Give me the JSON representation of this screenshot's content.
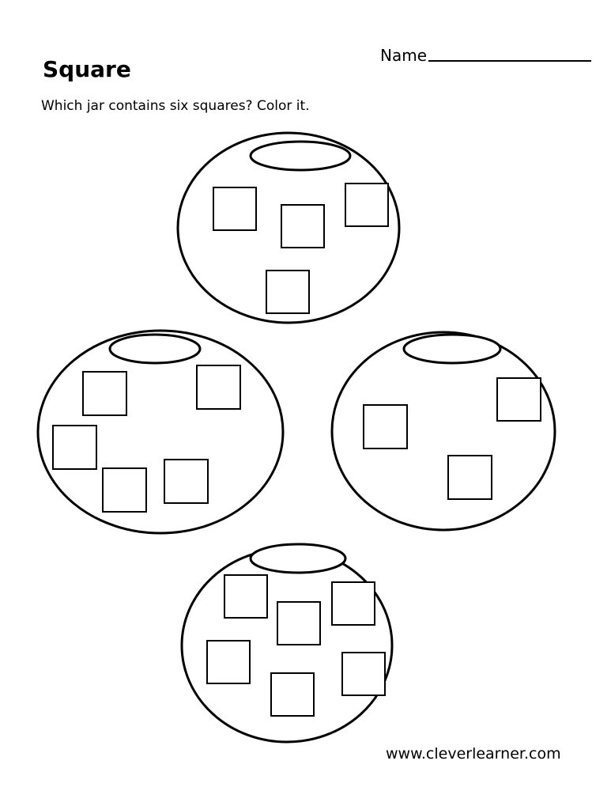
{
  "worksheet": {
    "title": "Square",
    "instruction": "Which jar contains six squares? Color it.",
    "name_label": "Name",
    "footer": "www.cleverlearner.com"
  },
  "jars": [
    {
      "id": "top",
      "square_count": 4
    },
    {
      "id": "left",
      "square_count": 5
    },
    {
      "id": "right",
      "square_count": 3
    },
    {
      "id": "bottom",
      "square_count": 6
    }
  ]
}
